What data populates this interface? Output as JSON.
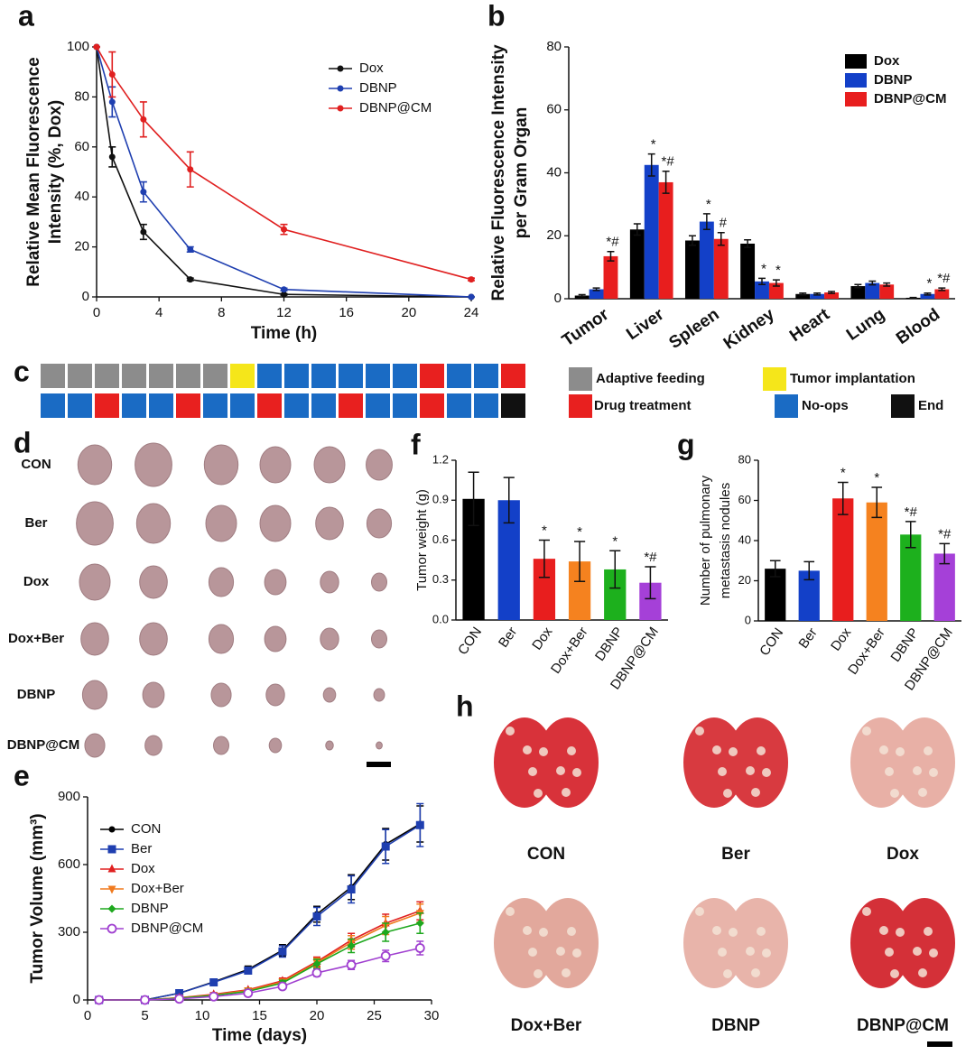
{
  "chart_data": [
    {
      "panel_label": "a",
      "type": "line",
      "x": [
        0,
        1,
        3,
        6,
        12,
        24
      ],
      "xlim": [
        0,
        24
      ],
      "xticks": [
        0,
        4,
        8,
        12,
        16,
        20,
        24
      ],
      "ylim": [
        0,
        100
      ],
      "yticks": [
        0,
        20,
        40,
        60,
        80,
        100
      ],
      "xlabel": "Time (h)",
      "ylabel": [
        "Relative Mean Fluorescence",
        "Intensity (%, Dox)"
      ],
      "legend": "upper right",
      "series": [
        {
          "name": "Dox",
          "color": "#111111",
          "marker": "circle",
          "values": [
            100,
            56,
            26,
            7,
            1,
            0
          ],
          "errors": [
            0,
            4,
            3,
            0.5,
            0.3,
            0
          ]
        },
        {
          "name": "DBNP",
          "color": "#1f3fb0",
          "marker": "circle",
          "values": [
            100,
            78,
            42,
            19,
            3,
            0
          ],
          "errors": [
            0,
            6,
            4,
            1,
            0.5,
            0
          ]
        },
        {
          "name": "DBNP@CM",
          "color": "#e02020",
          "marker": "circle",
          "values": [
            100,
            89,
            71,
            51,
            27,
            7
          ],
          "errors": [
            0,
            9,
            7,
            7,
            2,
            0.5
          ]
        }
      ]
    },
    {
      "panel_label": "b",
      "type": "bar",
      "categories": [
        "Tumor",
        "Liver",
        "Spleen",
        "Kidney",
        "Heart",
        "Lung",
        "Blood"
      ],
      "ylim": [
        0,
        80
      ],
      "yticks": [
        0,
        20,
        40,
        60,
        80
      ],
      "ylabel": [
        "Relative Fluorescence Intensity",
        "per Gram Organ"
      ],
      "legend": "upper right",
      "series": [
        {
          "name": "Dox",
          "color": "#000000",
          "values": [
            1,
            22,
            18.5,
            17.5,
            1.5,
            4,
            0.3
          ],
          "errors": [
            0.3,
            1.8,
            1.5,
            1.2,
            0.3,
            0.5,
            0.1
          ],
          "significance": [
            null,
            null,
            null,
            null,
            null,
            null,
            null
          ]
        },
        {
          "name": "DBNP",
          "color": "#1340c8",
          "values": [
            3,
            42.5,
            24.5,
            5.5,
            1.5,
            5,
            1.5
          ],
          "errors": [
            0.4,
            3.5,
            2.5,
            1,
            0.3,
            0.6,
            0.3
          ],
          "significance": [
            null,
            "*",
            "*",
            "*",
            null,
            null,
            "*"
          ]
        },
        {
          "name": "DBNP@CM",
          "color": "#e81e1e",
          "values": [
            13.5,
            37,
            19,
            5,
            2,
            4.5,
            3
          ],
          "errors": [
            1.5,
            3.5,
            2,
            1,
            0.3,
            0.5,
            0.4
          ],
          "significance": [
            "*#",
            "*#",
            "#",
            "*",
            null,
            null,
            "*#"
          ]
        }
      ]
    },
    {
      "panel_label": "e",
      "type": "line",
      "x": [
        1,
        5,
        8,
        11,
        14,
        17,
        20,
        23,
        26,
        29
      ],
      "xlim": [
        0,
        30
      ],
      "xticks": [
        0,
        5,
        10,
        15,
        20,
        25,
        30
      ],
      "ylim": [
        0,
        900
      ],
      "yticks": [
        0,
        300,
        600,
        900
      ],
      "xlabel": "Time (days)",
      "ylabel": [
        "Tumor Volume (mm³)"
      ],
      "legend": "upper left",
      "series": [
        {
          "name": "CON",
          "color": "#000000",
          "marker": "circle",
          "values": [
            0,
            0,
            30,
            80,
            135,
            220,
            380,
            500,
            690,
            780
          ],
          "errors": [
            0,
            0,
            5,
            8,
            15,
            25,
            35,
            55,
            70,
            80
          ]
        },
        {
          "name": "Ber",
          "color": "#1f3fb0",
          "marker": "square",
          "values": [
            0,
            0,
            30,
            78,
            130,
            215,
            370,
            490,
            680,
            775
          ],
          "errors": [
            0,
            0,
            5,
            8,
            15,
            25,
            40,
            60,
            75,
            95
          ]
        },
        {
          "name": "Dox",
          "color": "#e02020",
          "marker": "triangle",
          "values": [
            0,
            0,
            10,
            25,
            45,
            85,
            170,
            265,
            340,
            395
          ],
          "errors": [
            0,
            0,
            3,
            5,
            8,
            12,
            20,
            30,
            40,
            40
          ]
        },
        {
          "name": "Dox+Ber",
          "color": "#f07a1e",
          "marker": "down-triangle",
          "values": [
            0,
            0,
            10,
            22,
            42,
            80,
            165,
            255,
            330,
            385
          ],
          "errors": [
            0,
            0,
            3,
            5,
            8,
            12,
            20,
            30,
            40,
            40
          ]
        },
        {
          "name": "DBNP",
          "color": "#1ea81e",
          "marker": "diamond",
          "values": [
            0,
            0,
            8,
            20,
            38,
            75,
            160,
            240,
            300,
            340
          ],
          "errors": [
            0,
            0,
            3,
            5,
            8,
            12,
            20,
            30,
            40,
            45
          ]
        },
        {
          "name": "DBNP@CM",
          "color": "#a040d0",
          "marker": "open-circle",
          "values": [
            0,
            0,
            5,
            15,
            30,
            60,
            120,
            155,
            195,
            230
          ],
          "errors": [
            0,
            0,
            2,
            4,
            6,
            10,
            15,
            20,
            25,
            30
          ]
        }
      ]
    },
    {
      "panel_label": "f",
      "type": "bar",
      "categories": [
        "CON",
        "Ber",
        "Dox",
        "Dox+Ber",
        "DBNP",
        "DBNP@CM"
      ],
      "ylim": [
        0,
        1.2
      ],
      "yticks": [
        {
          "value": 0,
          "label": "0.0"
        },
        0.3,
        0.6,
        0.9,
        1.2
      ],
      "ylabel": [
        "Tumor weight (g)"
      ],
      "values": [
        0.91,
        0.9,
        0.46,
        0.44,
        0.38,
        0.28
      ],
      "errors": [
        0.2,
        0.17,
        0.14,
        0.15,
        0.14,
        0.12
      ],
      "colors": [
        "#000000",
        "#1340c8",
        "#e81e1e",
        "#f5821f",
        "#1db01d",
        "#a540d8"
      ],
      "significance": [
        null,
        null,
        "*",
        "*",
        "*",
        "*#"
      ]
    },
    {
      "panel_label": "g",
      "type": "bar",
      "categories": [
        "CON",
        "Ber",
        "Dox",
        "Dox+Ber",
        "DBNP",
        "DBNP@CM"
      ],
      "ylim": [
        0,
        80
      ],
      "yticks": [
        0,
        20,
        40,
        60,
        80
      ],
      "ylabel": [
        "Number of pulmonary",
        "metastasis nodules"
      ],
      "values": [
        26,
        25,
        61,
        59,
        43,
        33.5
      ],
      "errors": [
        4,
        4.5,
        8,
        7.5,
        6.5,
        5
      ],
      "colors": [
        "#000000",
        "#1340c8",
        "#e81e1e",
        "#f5821f",
        "#1db01d",
        "#a540d8"
      ],
      "significance": [
        null,
        null,
        "*",
        "*",
        "*#",
        "*#"
      ]
    }
  ],
  "timeline": {
    "panel_label": "c",
    "legend": [
      {
        "label": "Adaptive feeding",
        "color": "#8c8c8c"
      },
      {
        "label": "Tumor implantation",
        "color": "#f5e61a"
      },
      {
        "label": "Drug treatment",
        "color": "#e8201f"
      },
      {
        "label": "No-ops",
        "color": "#1a6bc4"
      },
      {
        "label": "End",
        "color": "#111111"
      }
    ],
    "rows": [
      [
        "Adaptive feeding",
        "Adaptive feeding",
        "Adaptive feeding",
        "Adaptive feeding",
        "Adaptive feeding",
        "Adaptive feeding",
        "Adaptive feeding",
        "Tumor implantation",
        "No-ops",
        "No-ops",
        "No-ops",
        "No-ops",
        "No-ops",
        "No-ops",
        "Drug treatment",
        "No-ops",
        "No-ops",
        "Drug treatment"
      ],
      [
        "No-ops",
        "No-ops",
        "Drug treatment",
        "No-ops",
        "No-ops",
        "Drug treatment",
        "No-ops",
        "No-ops",
        "Drug treatment",
        "No-ops",
        "No-ops",
        "Drug treatment",
        "No-ops",
        "No-ops",
        "Drug treatment",
        "No-ops",
        "No-ops",
        "End"
      ]
    ]
  },
  "tumor_photos": {
    "panel_label": "d",
    "groups": [
      "CON",
      "Ber",
      "Dox",
      "Dox+Ber",
      "DBNP",
      "DBNP@CM"
    ]
  },
  "lung_photos": {
    "panel_label": "h",
    "groups": [
      "CON",
      "Ber",
      "Dox",
      "Dox+Ber",
      "DBNP",
      "DBNP@CM"
    ]
  }
}
